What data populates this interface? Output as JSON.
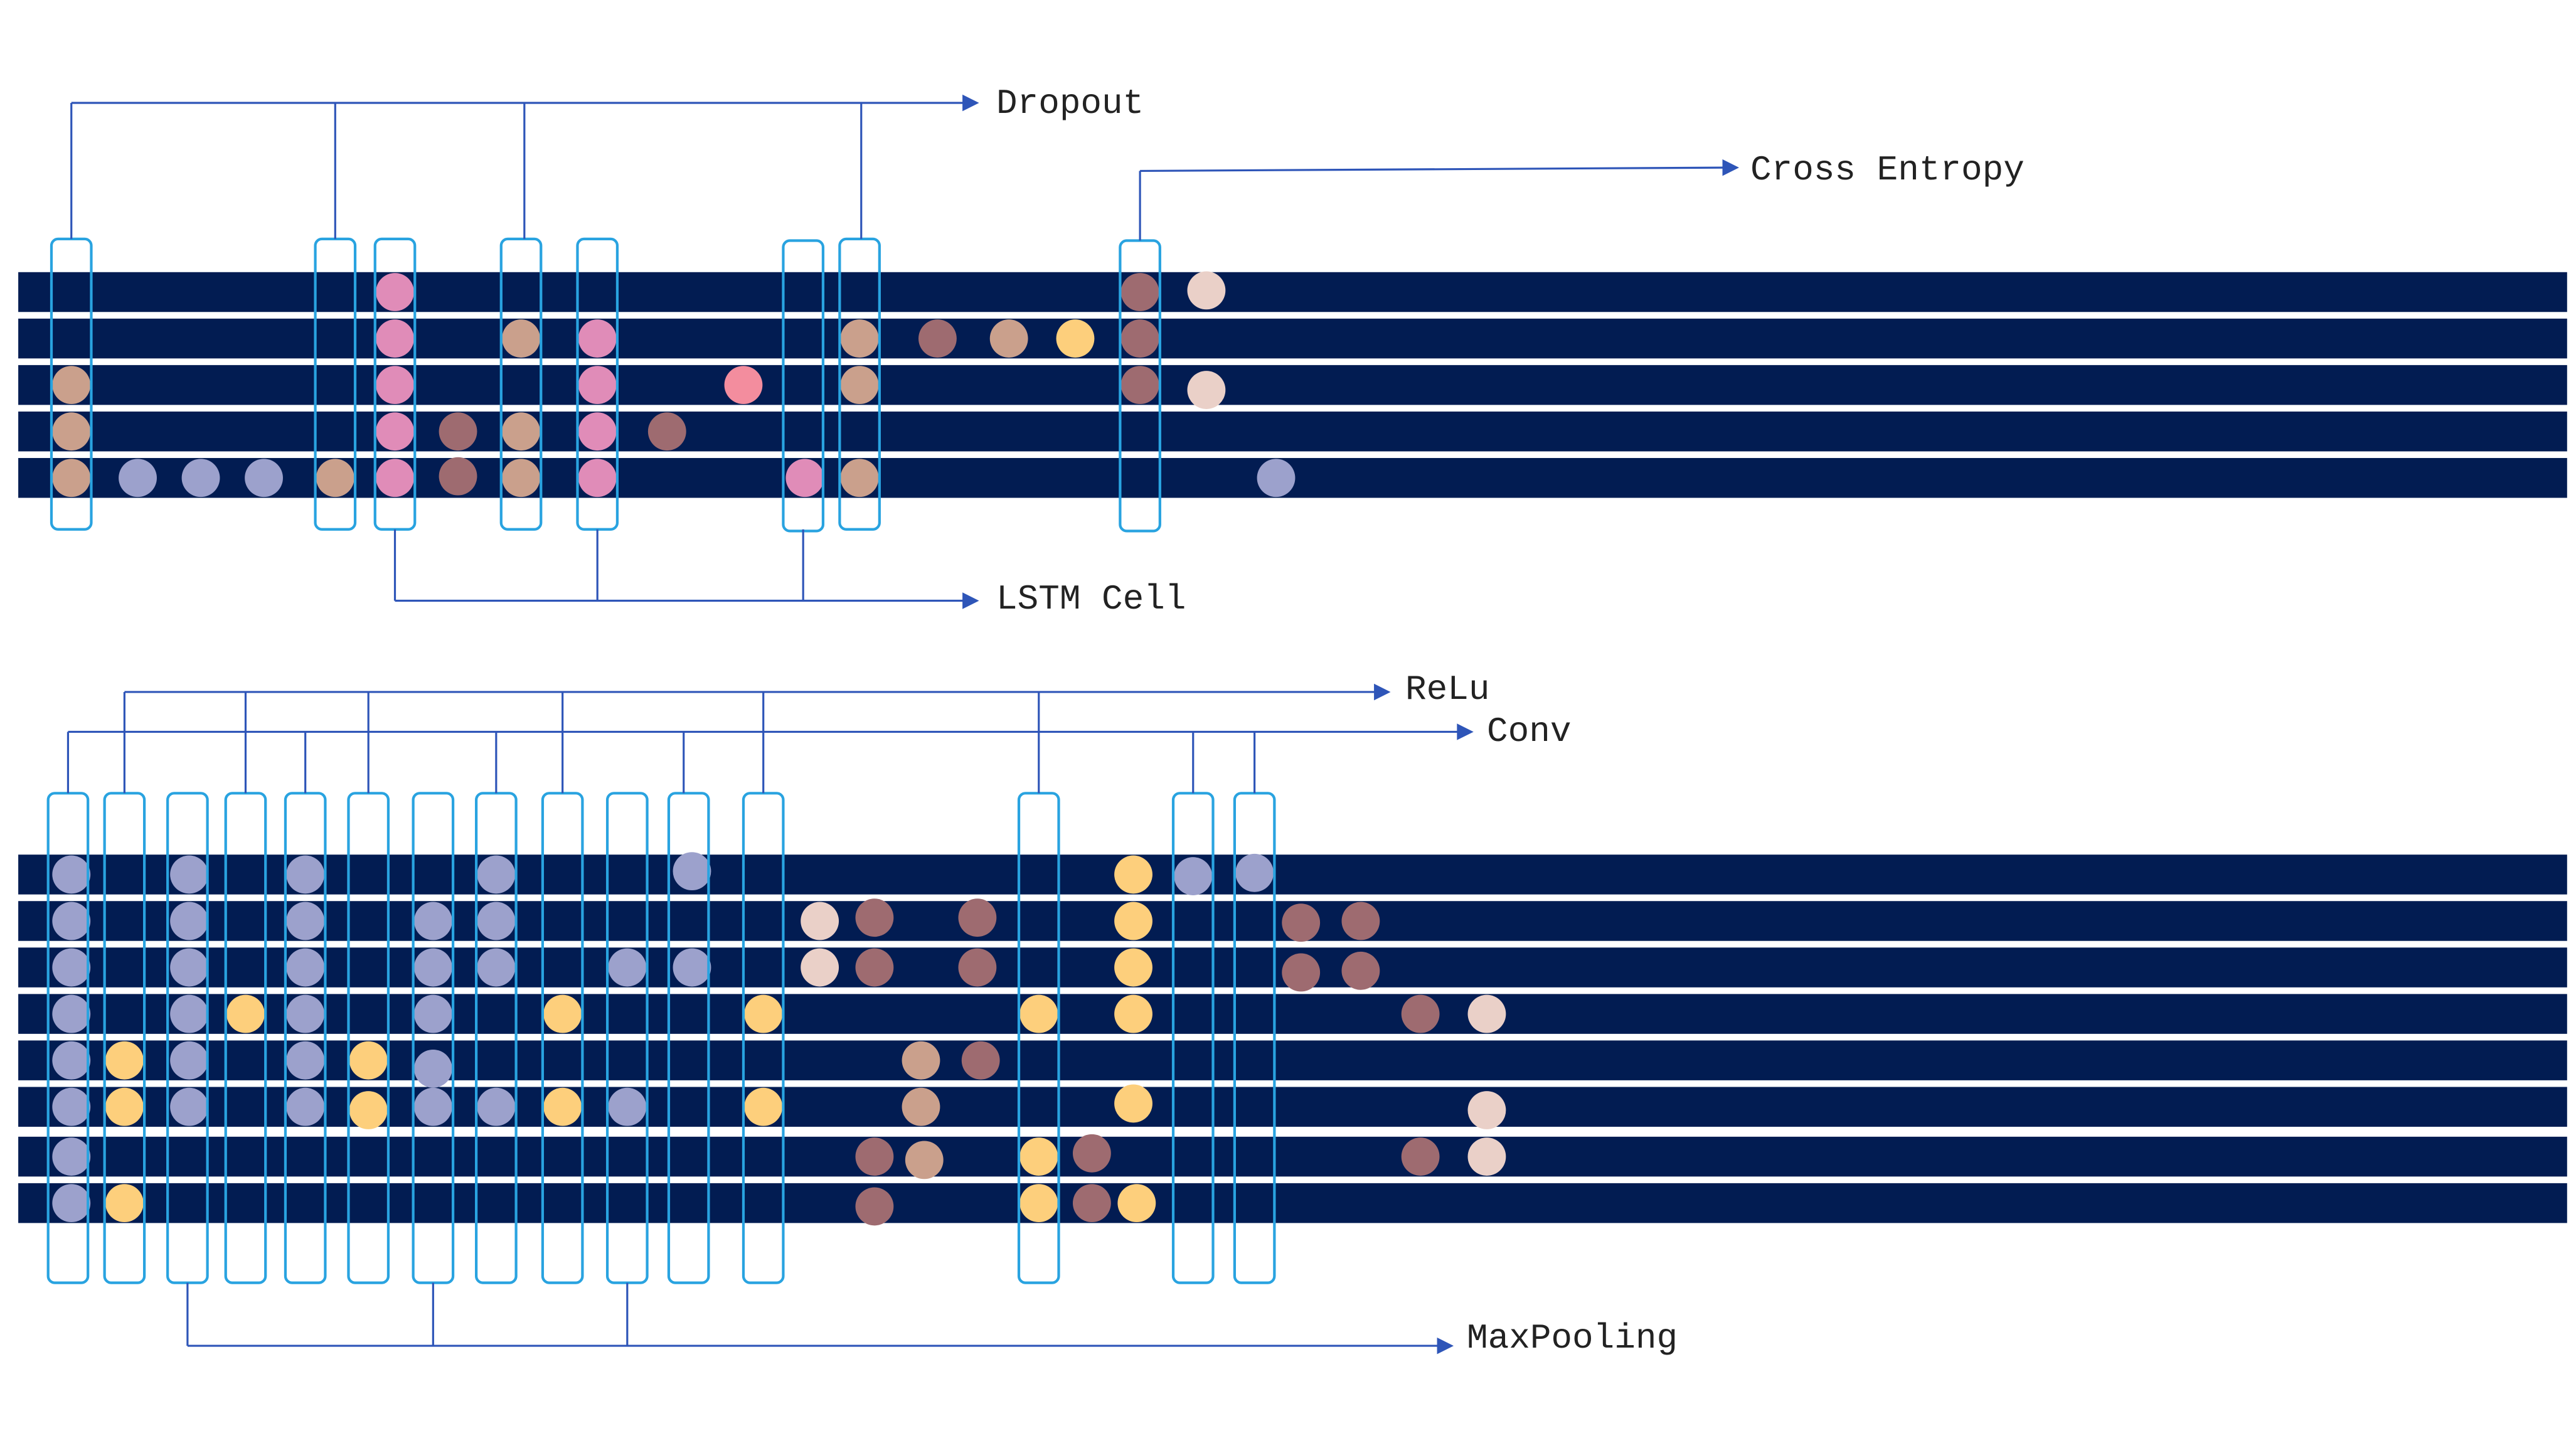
{
  "labels": {
    "dropout": "Dropout",
    "cross_entropy": "Cross Entropy",
    "lstm_cell": "LSTM Cell",
    "relu": "ReLu",
    "conv": "Conv",
    "maxpooling": "MaxPooling"
  },
  "colors": {
    "track": "#021c52",
    "frame": "#29a3e0",
    "connector": "#2e55b8",
    "dot_lavender": "#9ca1cc",
    "dot_tan": "#caa08c",
    "dot_brown": "#9e6b70",
    "dot_pink": "#e08cb8",
    "dot_hotpink": "#f38d9e",
    "dot_yellow": "#fdcf7c",
    "dot_peach": "#ead0c8"
  }
}
